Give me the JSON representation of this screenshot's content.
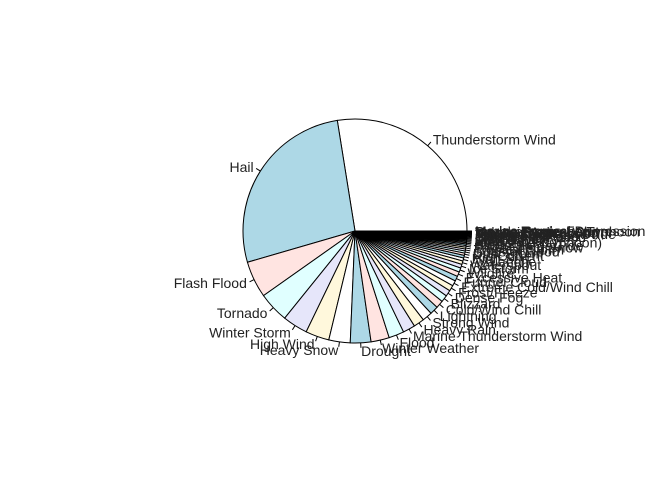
{
  "chart_data": {
    "type": "pie",
    "title": "",
    "start_angle_deg": 0,
    "direction": "counterclockwise",
    "palette": [
      "#ffffff",
      "#add8e6",
      "#ffe4e1",
      "#e0ffff",
      "#e6e6fa",
      "#fff8dc"
    ],
    "border_color": "#000000",
    "slices": [
      {
        "label": "Thunderstorm Wind",
        "value": 25.0
      },
      {
        "label": "Hail",
        "value": 24.5
      },
      {
        "label": "Flash Flood",
        "value": 4.8
      },
      {
        "label": "Tornado",
        "value": 4.0
      },
      {
        "label": "Winter Storm",
        "value": 3.3
      },
      {
        "label": "High Wind",
        "value": 3.1
      },
      {
        "label": "Heavy Snow",
        "value": 2.8
      },
      {
        "label": "Drought",
        "value": 2.7
      },
      {
        "label": "Winter Weather",
        "value": 2.4
      },
      {
        "label": "Flood",
        "value": 2.0
      },
      {
        "label": "Marine Thunderstorm Wind",
        "value": 1.6
      },
      {
        "label": "Heavy Rain",
        "value": 1.4
      },
      {
        "label": "Strong Wind",
        "value": 1.3
      },
      {
        "label": "Lightning",
        "value": 1.1
      },
      {
        "label": "Cold/Wind Chill",
        "value": 1.0
      },
      {
        "label": "Blizzard",
        "value": 0.9
      },
      {
        "label": "Dense Fog",
        "value": 0.8
      },
      {
        "label": "Frost/Freeze",
        "value": 0.75
      },
      {
        "label": "Extreme Cold/Wind Chill",
        "value": 0.7
      },
      {
        "label": "Funnel Cloud",
        "value": 0.65
      },
      {
        "label": "Excessive Heat",
        "value": 0.6
      },
      {
        "label": "Wildfire",
        "value": 0.55
      },
      {
        "label": "Ice Storm",
        "value": 0.5
      },
      {
        "label": "Waterspout",
        "value": 0.45
      },
      {
        "label": "Avalanche",
        "value": 0.4
      },
      {
        "label": "High Surf",
        "value": 0.35
      },
      {
        "label": "Rip Current",
        "value": 0.3
      },
      {
        "label": "Dust Storm",
        "value": 0.28
      },
      {
        "label": "Coastal Flood",
        "value": 0.26
      },
      {
        "label": "Tropical Storm",
        "value": 0.24
      },
      {
        "label": "Lake-Effect Snow",
        "value": 0.22
      },
      {
        "label": "Storm Surge/Tide",
        "value": 0.2
      },
      {
        "label": "Sleet",
        "value": 0.18
      },
      {
        "label": "Hurricane (Typhoon)",
        "value": 0.16
      },
      {
        "label": "Freezing Fog",
        "value": 0.15
      },
      {
        "label": "Dust Devil",
        "value": 0.14
      },
      {
        "label": "Debris Flow",
        "value": 0.13
      },
      {
        "label": "Marine Hail",
        "value": 0.12
      },
      {
        "label": "Marine High Wind",
        "value": 0.11
      },
      {
        "label": "Lakeshore Flood",
        "value": 0.1
      },
      {
        "label": "Seiche",
        "value": 0.09
      },
      {
        "label": "Tsunami",
        "value": 0.08
      },
      {
        "label": "Astronomical Low Tide",
        "value": 0.08
      },
      {
        "label": "Dense Smoke",
        "value": 0.07
      },
      {
        "label": "Tropical Depression",
        "value": 0.06
      },
      {
        "label": "Marine Strong Wind",
        "value": 0.05
      },
      {
        "label": "Volcanic Ash",
        "value": 0.04
      },
      {
        "label": "Marine Tropical Storm",
        "value": 0.03
      },
      {
        "label": "Marine Hurricane/Typhoon",
        "value": 0.03
      },
      {
        "label": "Sneakerwave",
        "value": 0.02
      },
      {
        "label": "Marine Dense Fog",
        "value": 0.02
      },
      {
        "label": "Marine Tropical Depression",
        "value": 0.01
      }
    ]
  }
}
